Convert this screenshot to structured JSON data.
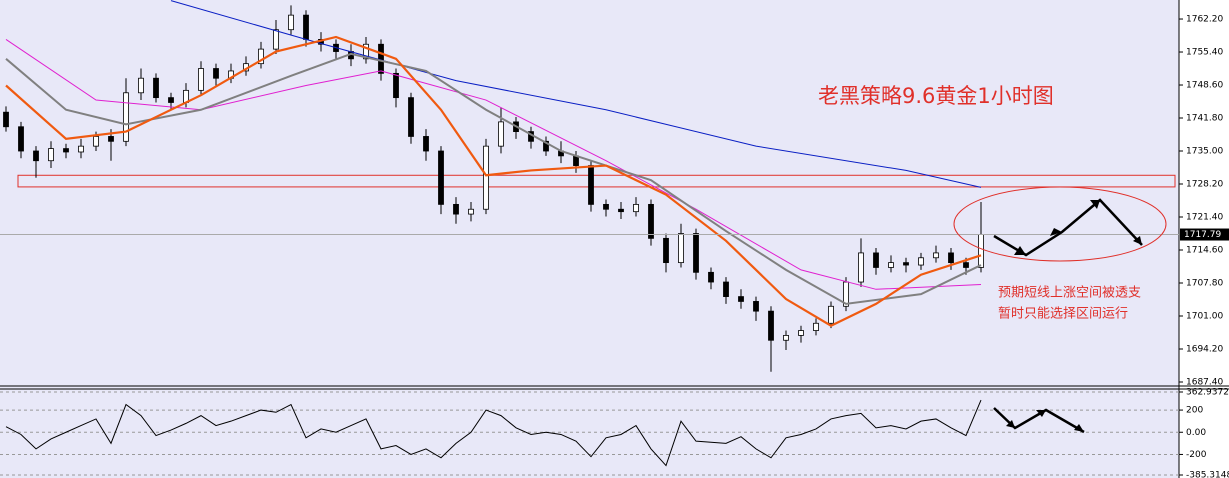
{
  "chart_data": [
    {
      "type": "candlestick",
      "title": "老黑策略9.6黄金1小时图",
      "annotations": [
        "预期短线上涨空间被透支",
        "暂时只能选择区间运行"
      ],
      "ylim": [
        1686.78,
        1766.12
      ],
      "yticks": [
        {
          "value": 1762.2,
          "label": "1762.20"
        },
        {
          "value": 1755.4,
          "label": "1755.40"
        },
        {
          "value": 1748.6,
          "label": "1748.60"
        },
        {
          "value": 1741.8,
          "label": "1741.80"
        },
        {
          "value": 1735,
          "label": "1735.00"
        },
        {
          "value": 1728.2,
          "label": "1728.20"
        },
        {
          "value": 1721.4,
          "label": "1721.40"
        },
        {
          "value": 1714.6,
          "label": "1714.60"
        },
        {
          "value": 1707.8,
          "label": "1707.80"
        },
        {
          "value": 1701,
          "label": "1701.00"
        },
        {
          "value": 1694.2,
          "label": "1694.20"
        },
        {
          "value": 1687.4,
          "label": "1687.40"
        }
      ],
      "last_price": 1717.79,
      "zone": [
        1727.6,
        1730.0
      ],
      "open": [
        1743,
        1740,
        1735,
        1733,
        1735.5,
        1734.8,
        1736,
        1738,
        1737,
        1747,
        1750,
        1746,
        1745,
        1747.5,
        1752,
        1750,
        1751.5,
        1753,
        1756,
        1760,
        1763,
        1758,
        1757,
        1755.5,
        1754,
        1757,
        1751,
        1746,
        1738,
        1735,
        1724,
        1722,
        1723,
        1736,
        1741,
        1739,
        1737,
        1735,
        1734,
        1732,
        1724,
        1723,
        1722.5,
        1724,
        1717,
        1712,
        1718,
        1710,
        1708,
        1705,
        1704,
        1702,
        1696,
        1697,
        1698,
        1699.5,
        1703,
        1708,
        1714,
        1711,
        1712,
        1711.5,
        1713,
        1714,
        1712,
        1711
      ],
      "high": [
        1744.2,
        1741,
        1736,
        1737,
        1736.5,
        1737.5,
        1739,
        1739.5,
        1750,
        1752,
        1751,
        1747,
        1749,
        1753.5,
        1753,
        1753,
        1754.5,
        1757.5,
        1762,
        1765,
        1764,
        1759.5,
        1758,
        1757,
        1758.5,
        1758,
        1752,
        1747,
        1739.5,
        1736,
        1725.5,
        1724.5,
        1737.5,
        1744,
        1742,
        1740,
        1738,
        1737,
        1735,
        1733,
        1725,
        1724.5,
        1725.5,
        1725,
        1718,
        1720,
        1719,
        1711,
        1709,
        1706.5,
        1705,
        1703,
        1698,
        1699,
        1700.5,
        1704,
        1709,
        1717,
        1715,
        1713.5,
        1713,
        1714,
        1715.5,
        1715,
        1713,
        1724.5
      ],
      "low": [
        1739,
        1733.5,
        1729.5,
        1731.5,
        1733.5,
        1733.5,
        1735,
        1733,
        1736,
        1745.5,
        1745,
        1743.5,
        1744,
        1746.5,
        1748.5,
        1749,
        1750.5,
        1752,
        1755,
        1759,
        1756.5,
        1755.5,
        1754,
        1752.5,
        1753,
        1749.5,
        1744,
        1736.5,
        1733,
        1722,
        1720,
        1720.5,
        1722,
        1734.5,
        1737.5,
        1735.5,
        1734,
        1732.5,
        1730.5,
        1722.5,
        1721.5,
        1721,
        1721.5,
        1715.5,
        1710,
        1711,
        1708.5,
        1706.5,
        1703.5,
        1702.5,
        1700,
        1689.5,
        1694,
        1695.5,
        1697,
        1698.5,
        1702,
        1707,
        1709.5,
        1710,
        1710,
        1710.5,
        1712,
        1710.5,
        1709.5,
        1710
      ],
      "close": [
        1740,
        1735,
        1733,
        1735.5,
        1734.8,
        1736,
        1738,
        1737,
        1747,
        1750,
        1746,
        1745,
        1747.5,
        1752,
        1750,
        1751.5,
        1753,
        1756,
        1760,
        1763,
        1758,
        1757,
        1755.5,
        1754,
        1757,
        1751,
        1746,
        1738,
        1735,
        1724,
        1722,
        1723,
        1736,
        1741,
        1739,
        1737,
        1735,
        1734,
        1732,
        1724,
        1723,
        1722.5,
        1724,
        1717,
        1712,
        1718,
        1710,
        1708,
        1705,
        1704,
        1702,
        1696,
        1697,
        1698,
        1699.5,
        1703,
        1708,
        1714,
        1711,
        1712,
        1711.5,
        1713,
        1714,
        1712,
        1711,
        1717.79
      ],
      "series": [
        {
          "color": "#0a1fc4",
          "x": [
            11,
            20,
            30,
            40,
            50,
            60,
            65
          ],
          "values": [
            1766,
            1758,
            1749.5,
            1743.5,
            1736,
            1731,
            1727.5
          ]
        },
        {
          "color": "#e020d0",
          "x": [
            0,
            6,
            13,
            20,
            25,
            32,
            40,
            46,
            53,
            58,
            65
          ],
          "values": [
            1758,
            1745.5,
            1743.5,
            1748.5,
            1751.5,
            1745.5,
            1733,
            1723,
            1710.5,
            1706.5,
            1707.5
          ]
        },
        {
          "color": "#808080",
          "x": [
            0,
            4,
            8,
            13,
            19,
            23,
            28,
            32,
            37,
            43,
            48,
            52,
            56,
            61,
            65
          ],
          "values": [
            1754,
            1743.5,
            1740.5,
            1743.5,
            1750.5,
            1755,
            1751.5,
            1743.5,
            1735,
            1729,
            1718.5,
            1710.5,
            1703.5,
            1705.5,
            1711.5
          ]
        },
        {
          "color": "#f05a10",
          "x": [
            0,
            4,
            8,
            13,
            18,
            22,
            26,
            29,
            32,
            35,
            40,
            44,
            48,
            52,
            55,
            58,
            61,
            65
          ],
          "values": [
            1748.5,
            1737.5,
            1739,
            1746.5,
            1755.5,
            1758.5,
            1754,
            1743.5,
            1730,
            1731,
            1732,
            1726,
            1716.5,
            1704.5,
            1699,
            1703.5,
            1709.5,
            1713.5
          ]
        }
      ]
    },
    {
      "type": "line",
      "ylim": [
        -385.3148,
        362.9372
      ],
      "yticks": [
        362.9372,
        200,
        {
          "value": 0,
          "label": "0.00"
        },
        -200,
        -385.3148
      ],
      "color": "#000000",
      "values": [
        50,
        -20,
        -150,
        -60,
        0,
        60,
        120,
        -100,
        250,
        150,
        -30,
        20,
        80,
        150,
        60,
        100,
        150,
        200,
        180,
        250,
        -50,
        30,
        0,
        60,
        120,
        -150,
        -120,
        -200,
        -150,
        -230,
        -100,
        0,
        200,
        150,
        40,
        -20,
        0,
        -20,
        -80,
        -220,
        -50,
        -20,
        60,
        -150,
        -300,
        100,
        -80,
        -90,
        -100,
        -40,
        -150,
        -230,
        -50,
        -20,
        30,
        120,
        150,
        170,
        40,
        60,
        30,
        100,
        120,
        40,
        -30,
        290
      ]
    }
  ]
}
